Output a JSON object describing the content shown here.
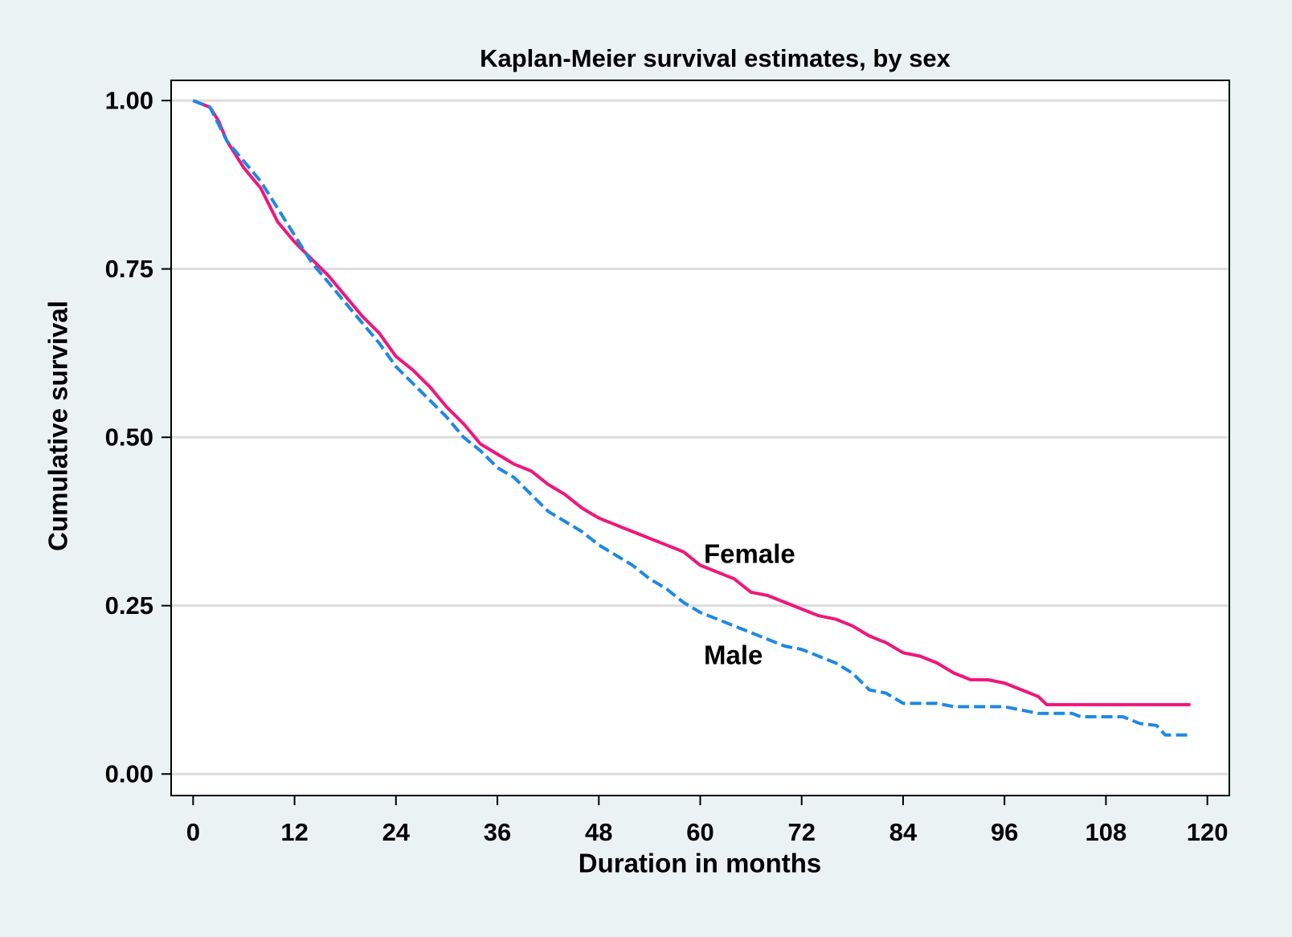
{
  "chart_data": {
    "type": "line",
    "title": "Kaplan-Meier survival estimates, by sex",
    "x_label": "Duration in months",
    "y_label": "Cumulative survival",
    "xlim": [
      -2.6,
      122.6
    ],
    "ylim": [
      -0.032,
      1.03
    ],
    "xticks": [
      0,
      12,
      24,
      36,
      48,
      60,
      72,
      84,
      96,
      108,
      120
    ],
    "yticks": [
      {
        "value": 0,
        "label": "0.00"
      },
      {
        "value": 0.25,
        "label": "0.25"
      },
      {
        "value": 0.5,
        "label": "0.50"
      },
      {
        "value": 0.75,
        "label": "0.75"
      },
      {
        "value": 1,
        "label": "1.00"
      }
    ],
    "grid": true,
    "series": [
      {
        "name": "Female",
        "color": "#f0167a",
        "dash": false,
        "x": [
          0,
          2,
          3,
          4,
          6,
          8,
          10,
          12,
          14,
          16,
          18,
          20,
          22,
          24,
          26,
          28,
          30,
          32,
          34,
          36,
          38,
          40,
          42,
          44,
          46,
          48,
          50,
          52,
          54,
          56,
          58,
          60,
          62,
          64,
          66,
          68,
          70,
          72,
          74,
          76,
          78,
          80,
          82,
          84,
          86,
          88,
          90,
          92,
          94,
          96,
          98,
          100,
          101,
          118
        ],
        "values": [
          1.0,
          0.99,
          0.97,
          0.94,
          0.9,
          0.87,
          0.82,
          0.79,
          0.765,
          0.74,
          0.71,
          0.68,
          0.655,
          0.62,
          0.6,
          0.575,
          0.545,
          0.52,
          0.49,
          0.475,
          0.46,
          0.45,
          0.43,
          0.415,
          0.395,
          0.38,
          0.37,
          0.36,
          0.35,
          0.34,
          0.33,
          0.31,
          0.3,
          0.29,
          0.27,
          0.265,
          0.255,
          0.245,
          0.235,
          0.23,
          0.22,
          0.205,
          0.195,
          0.18,
          0.175,
          0.165,
          0.15,
          0.14,
          0.14,
          0.135,
          0.125,
          0.115,
          0.103,
          0.103
        ]
      },
      {
        "name": "Male",
        "color": "#1e88e5",
        "dash": true,
        "x": [
          0,
          2,
          4,
          6,
          8,
          10,
          12,
          14,
          16,
          18,
          20,
          22,
          24,
          26,
          28,
          30,
          32,
          34,
          36,
          38,
          40,
          42,
          44,
          46,
          48,
          50,
          52,
          54,
          56,
          58,
          60,
          62,
          64,
          66,
          68,
          70,
          72,
          74,
          76,
          78,
          80,
          82,
          84,
          88,
          90,
          96,
          98,
          100,
          104,
          105,
          110,
          112,
          114,
          115,
          118
        ],
        "values": [
          1.0,
          0.99,
          0.94,
          0.91,
          0.88,
          0.84,
          0.8,
          0.76,
          0.73,
          0.7,
          0.67,
          0.64,
          0.605,
          0.58,
          0.555,
          0.53,
          0.5,
          0.48,
          0.455,
          0.44,
          0.415,
          0.39,
          0.375,
          0.36,
          0.34,
          0.325,
          0.31,
          0.29,
          0.275,
          0.255,
          0.24,
          0.23,
          0.22,
          0.21,
          0.2,
          0.19,
          0.185,
          0.175,
          0.165,
          0.15,
          0.125,
          0.12,
          0.105,
          0.105,
          0.1,
          0.1,
          0.095,
          0.09,
          0.09,
          0.085,
          0.085,
          0.075,
          0.072,
          0.058,
          0.058
        ]
      }
    ]
  }
}
